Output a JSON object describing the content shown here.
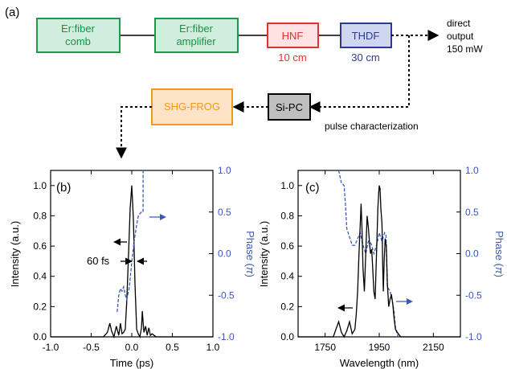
{
  "diagram": {
    "panel_label": "(a)",
    "blocks": {
      "comb": [
        "Er:fiber",
        "comb"
      ],
      "amplifier": [
        "Er:fiber",
        "amplifier"
      ],
      "hnf": "HNF",
      "thdf": "THDF",
      "sipc": "Si-PC",
      "frog": "SHG-FROG"
    },
    "hnf_length": "10 cm",
    "thdf_length": "30 cm",
    "output_text": [
      "direct",
      "output",
      "150 mW"
    ],
    "pulse_text": "pulse characterization",
    "colors": {
      "green_fill": "#cfeede",
      "green_stroke": "#1f9a4a",
      "green_text": "#179444",
      "hnf_fill": "#ffe2e2",
      "hnf_stroke": "#e5312e",
      "thdf_fill": "#cfd6ef",
      "thdf_stroke": "#2c3a96",
      "frog_fill": "#fde3c6",
      "frog_stroke": "#f0991f",
      "sipc_fill": "#bfbfbf",
      "blue": "#3a59b8"
    }
  },
  "chart_data": [
    {
      "type": "line",
      "panel_label": "(b)",
      "xlabel": "Time (ps)",
      "ylabel_left": "Intensity (a.u.)",
      "ylabel_right": [
        "Phase (",
        "π",
        ")"
      ],
      "xlim": [
        -1.0,
        1.0
      ],
      "ylim": [
        0,
        1.1
      ],
      "y2lim": [
        -1.0,
        1.0
      ],
      "xticks": [
        "-1.0",
        "-0.5",
        "0.0",
        "0.5",
        "1.0"
      ],
      "yticks": [
        "0.0",
        "0.2",
        "0.4",
        "0.6",
        "0.8",
        "1.0"
      ],
      "y2ticks": [
        "-1.0",
        "-0.5",
        "0.0",
        "0.5",
        "1.0"
      ],
      "annotation": "60 fs",
      "series": [
        {
          "style": "solid",
          "color": "#000000",
          "x": [
            -1.0,
            -0.35,
            -0.3,
            -0.27,
            -0.25,
            -0.22,
            -0.19,
            -0.16,
            -0.14,
            -0.12,
            -0.1,
            -0.08,
            -0.06,
            -0.04,
            -0.02,
            0.0,
            0.02,
            0.04,
            0.06,
            0.08,
            0.1,
            0.12,
            0.13,
            0.15,
            0.17,
            0.19,
            0.21,
            0.23,
            0.25,
            0.3,
            1.0
          ],
          "y": [
            0.0,
            0.0,
            0.03,
            0.09,
            0.04,
            0.0,
            0.07,
            0.01,
            0.09,
            0.02,
            0.03,
            0.05,
            0.25,
            0.55,
            0.85,
            1.0,
            0.78,
            0.35,
            0.05,
            0.02,
            0.0,
            0.06,
            0.17,
            0.03,
            0.07,
            0.01,
            0.06,
            0.01,
            0.02,
            0.0,
            0.0
          ]
        },
        {
          "style": "dashed",
          "color": "#3a59b8",
          "x": [
            -0.18,
            -0.16,
            -0.14,
            -0.12,
            -0.1,
            -0.08,
            -0.06,
            -0.03,
            0.0,
            0.03,
            0.06,
            0.08,
            0.1,
            0.12,
            0.14,
            0.14,
            0.16
          ],
          "y": [
            -0.7,
            -0.5,
            -0.42,
            -0.45,
            -0.4,
            -0.5,
            -0.55,
            -0.4,
            -0.1,
            0.15,
            0.35,
            0.45,
            0.48,
            0.5,
            0.5,
            1.0,
            1.0
          ]
        }
      ]
    },
    {
      "type": "line",
      "panel_label": "(c)",
      "xlabel": "Wavelength (nm)",
      "ylabel_left": "Intensity (a.u.)",
      "ylabel_right": [
        "Phase (",
        "π",
        ")"
      ],
      "xlim": [
        1650,
        2250
      ],
      "ylim": [
        0,
        1.1
      ],
      "y2lim": [
        -1.0,
        1.0
      ],
      "xticks": [
        "1750",
        "1950",
        "2150"
      ],
      "yticks": [
        "0.0",
        "0.2",
        "0.4",
        "0.6",
        "0.8",
        "1.0"
      ],
      "y2ticks": [
        "-1.0",
        "-0.5",
        "0.0",
        "0.5",
        "1.0"
      ],
      "series": [
        {
          "style": "solid",
          "color": "#000000",
          "x": [
            1650,
            1780,
            1790,
            1800,
            1810,
            1820,
            1830,
            1840,
            1850,
            1860,
            1865,
            1870,
            1875,
            1880,
            1883,
            1886,
            1890,
            1895,
            1900,
            1905,
            1910,
            1915,
            1918,
            1922,
            1926,
            1930,
            1935,
            1940,
            1945,
            1948,
            1950,
            1953,
            1956,
            1960,
            1963,
            1965,
            1968,
            1972,
            1976,
            1980,
            1985,
            1990,
            1995,
            2000,
            2005,
            2010,
            2020,
            2030,
            2250
          ],
          "y": [
            0.0,
            0.0,
            0.05,
            0.1,
            0.03,
            0.0,
            0.04,
            0.1,
            0.02,
            0.05,
            0.15,
            0.3,
            0.55,
            0.75,
            0.88,
            0.72,
            0.45,
            0.3,
            0.55,
            0.8,
            0.72,
            0.6,
            0.55,
            0.58,
            0.45,
            0.3,
            0.25,
            0.55,
            0.85,
            0.95,
            1.0,
            0.98,
            0.85,
            0.75,
            0.45,
            0.3,
            0.5,
            0.65,
            0.6,
            0.35,
            0.2,
            0.25,
            0.28,
            0.22,
            0.12,
            0.05,
            0.02,
            0.0,
            0.0
          ]
        },
        {
          "style": "dashed",
          "color": "#3a59b8",
          "x": [
            1800,
            1810,
            1820,
            1825,
            1830,
            1850,
            1860,
            1870,
            1880,
            1890,
            1900,
            1910,
            1920,
            1930,
            1940,
            1950,
            1960,
            1970,
            1975,
            1980,
            1990,
            2000,
            2005,
            2010,
            2020
          ],
          "y": [
            1.0,
            0.85,
            0.82,
            0.6,
            0.3,
            0.1,
            0.1,
            0.18,
            0.25,
            0.1,
            0.0,
            0.15,
            0.12,
            0.0,
            0.1,
            0.25,
            0.15,
            0.25,
            0.22,
            -0.4,
            -0.45,
            -0.6,
            -0.7,
            -0.9,
            -1.0
          ]
        }
      ]
    }
  ]
}
